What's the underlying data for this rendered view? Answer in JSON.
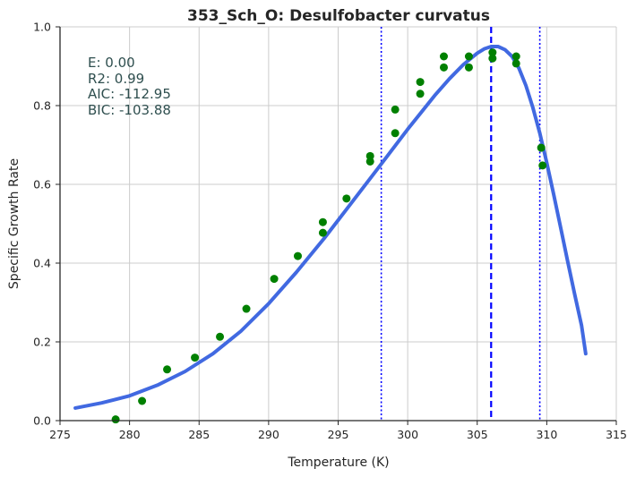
{
  "chart_data": {
    "type": "scatter",
    "title": "353_Sch_O: Desulfobacter curvatus",
    "xlabel": "Temperature (K)",
    "ylabel": "Specific Growth Rate",
    "xlim": [
      275,
      315
    ],
    "ylim": [
      0.0,
      1.0
    ],
    "xticks": [
      "275",
      "280",
      "285",
      "290",
      "295",
      "300",
      "305",
      "310",
      "315"
    ],
    "yticks": [
      "0.0",
      "0.2",
      "0.4",
      "0.6",
      "0.8",
      "1.0"
    ],
    "grid": true,
    "stats": [
      "E:  0.00",
      "R2:  0.99",
      "AIC: -112.95",
      "BIC: -103.88"
    ],
    "series": [
      {
        "type": "scatter",
        "color": "#008000",
        "points": [
          [
            279.0,
            0.003
          ],
          [
            280.9,
            0.05
          ],
          [
            282.7,
            0.13
          ],
          [
            284.7,
            0.16
          ],
          [
            286.5,
            0.213
          ],
          [
            288.4,
            0.284
          ],
          [
            290.4,
            0.36
          ],
          [
            292.1,
            0.418
          ],
          [
            293.9,
            0.477
          ],
          [
            293.9,
            0.504
          ],
          [
            295.6,
            0.564
          ],
          [
            297.3,
            0.658
          ],
          [
            297.3,
            0.672
          ],
          [
            299.1,
            0.73
          ],
          [
            299.1,
            0.79
          ],
          [
            300.9,
            0.83
          ],
          [
            300.9,
            0.86
          ],
          [
            302.6,
            0.897
          ],
          [
            302.6,
            0.925
          ],
          [
            304.4,
            0.897
          ],
          [
            304.4,
            0.925
          ],
          [
            306.1,
            0.92
          ],
          [
            306.1,
            0.935
          ],
          [
            307.8,
            0.907
          ],
          [
            307.8,
            0.925
          ],
          [
            309.6,
            0.693
          ],
          [
            309.7,
            0.648
          ]
        ]
      },
      {
        "type": "line",
        "color": "#4169e1",
        "points": [
          [
            276.1,
            0.032
          ],
          [
            278.0,
            0.045
          ],
          [
            280.0,
            0.063
          ],
          [
            282.0,
            0.09
          ],
          [
            284.0,
            0.125
          ],
          [
            286.0,
            0.17
          ],
          [
            288.0,
            0.227
          ],
          [
            290.0,
            0.297
          ],
          [
            292.0,
            0.377
          ],
          [
            294.0,
            0.463
          ],
          [
            296.0,
            0.555
          ],
          [
            298.0,
            0.647
          ],
          [
            300.0,
            0.74
          ],
          [
            302.0,
            0.828
          ],
          [
            303.0,
            0.868
          ],
          [
            304.0,
            0.904
          ],
          [
            305.0,
            0.933
          ],
          [
            305.5,
            0.944
          ],
          [
            306.0,
            0.95
          ],
          [
            306.5,
            0.95
          ],
          [
            307.0,
            0.942
          ],
          [
            307.5,
            0.925
          ],
          [
            308.0,
            0.895
          ],
          [
            308.5,
            0.851
          ],
          [
            309.0,
            0.795
          ],
          [
            309.5,
            0.73
          ],
          [
            310.0,
            0.655
          ],
          [
            310.5,
            0.574
          ],
          [
            311.0,
            0.49
          ],
          [
            311.5,
            0.405
          ],
          [
            312.0,
            0.322
          ],
          [
            312.5,
            0.242
          ],
          [
            312.8,
            0.17
          ]
        ]
      }
    ],
    "vlines": [
      {
        "x": 298.1,
        "style": "dotted",
        "color": "#0000ff"
      },
      {
        "x": 306.0,
        "style": "dashed",
        "color": "#0000ff"
      },
      {
        "x": 309.5,
        "style": "dotted",
        "color": "#0000ff"
      }
    ]
  },
  "colors": {
    "grid": "#cccccc",
    "axis": "#262626",
    "text": "#262626",
    "stats": "#2f4f4f"
  }
}
